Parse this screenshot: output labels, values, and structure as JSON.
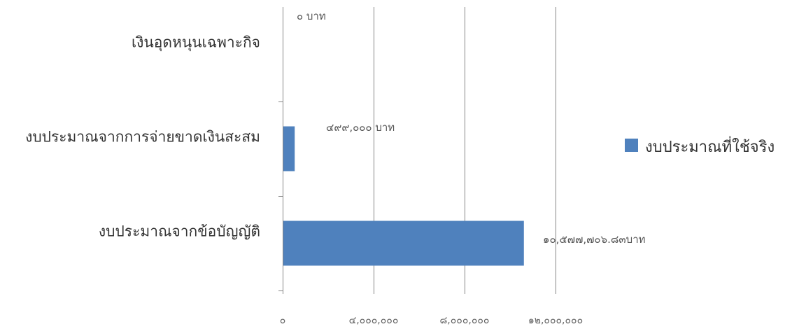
{
  "chart_data": {
    "type": "bar",
    "orientation": "horizontal",
    "categories": [
      "เงินอุดหนุนเฉพาะกิจ",
      "งบประมาณจากการจ่ายขาดเงินสะสม",
      "งบประมาณจากข้อบัญญัติ"
    ],
    "series": [
      {
        "name": "งบประมาณที่ใช้จริง",
        "values": [
          0,
          499000,
          10577706.83
        ],
        "color": "#4f81bd"
      }
    ],
    "data_labels": [
      "๐ บาท",
      "๔๙๙,๐๐๐ บาท",
      "๑๐,๕๗๗,๗๐๖.๘๓บาท"
    ],
    "x_ticks": [
      0,
      4000000,
      8000000,
      12000000
    ],
    "x_tick_labels": [
      "๐",
      "๔,๐๐๐,๐๐๐",
      "๘,๐๐๐,๐๐๐",
      "๑๒,๐๐๐,๐๐๐"
    ],
    "xlim": [
      0,
      12000000
    ],
    "grid": true,
    "legend_position": "right",
    "colors": {
      "bar": "#4f81bd",
      "grid": "#868686",
      "axis": "#868686"
    }
  }
}
